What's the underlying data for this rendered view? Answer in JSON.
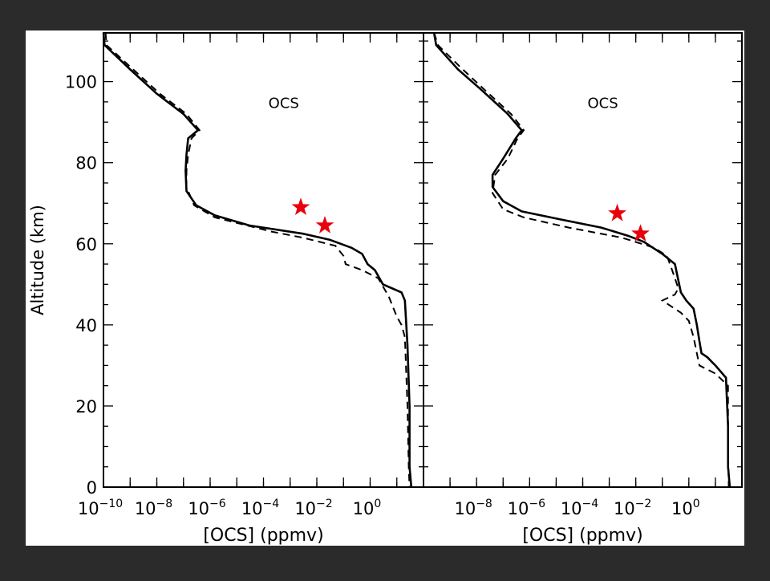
{
  "chart_data": [
    {
      "type": "line",
      "panel": "left",
      "annotation": "OCS",
      "ylabel": "Altitude    (km)",
      "xlabel": "[OCS]   (ppmv)",
      "xscale": "log",
      "xlim": [
        1e-10,
        100.0
      ],
      "ylim": [
        0,
        112
      ],
      "xticks": [
        {
          "value": 1e-10,
          "base": "10",
          "exp": "−10"
        },
        {
          "value": 1e-08,
          "base": "10",
          "exp": "−8"
        },
        {
          "value": 1e-06,
          "base": "10",
          "exp": "−6"
        },
        {
          "value": 0.0001,
          "base": "10",
          "exp": "−4"
        },
        {
          "value": 0.01,
          "base": "10",
          "exp": "−2"
        },
        {
          "value": 1,
          "base": "10",
          "exp": "0"
        }
      ],
      "yticks": [
        {
          "value": 0,
          "label": "0"
        },
        {
          "value": 20,
          "label": "20"
        },
        {
          "value": 40,
          "label": "40"
        },
        {
          "value": 60,
          "label": "60"
        },
        {
          "value": 80,
          "label": "80"
        },
        {
          "value": 100,
          "label": "100"
        }
      ],
      "series": [
        {
          "style": "solid",
          "points": [
            [
              1e-10,
              112
            ],
            [
              1.1e-10,
              109
            ],
            [
              1e-09,
              103
            ],
            [
              1e-08,
              97
            ],
            [
              1e-07,
              92
            ],
            [
              3.5e-07,
              88
            ],
            [
              1.5e-07,
              86
            ],
            [
              1.3e-07,
              82
            ],
            [
              1.2e-07,
              78
            ],
            [
              1.3e-07,
              73
            ],
            [
              3e-07,
              69.5
            ],
            [
              1.5e-06,
              67
            ],
            [
              3e-05,
              64.5
            ],
            [
              0.003,
              62.5
            ],
            [
              0.03,
              61
            ],
            [
              0.2,
              59
            ],
            [
              0.5,
              57.5
            ],
            [
              0.8,
              55
            ],
            [
              1.5,
              53.5
            ],
            [
              3,
              50
            ],
            [
              15,
              48
            ],
            [
              20,
              46
            ],
            [
              25,
              35
            ],
            [
              30,
              20
            ],
            [
              30,
              5
            ],
            [
              35,
              0
            ]
          ]
        },
        {
          "style": "dashed",
          "points": [
            [
              1.2e-10,
              112
            ],
            [
              1.3e-10,
              109
            ],
            [
              1.3e-09,
              103
            ],
            [
              1.3e-08,
              97
            ],
            [
              1.3e-07,
              92
            ],
            [
              4e-07,
              88
            ],
            [
              2e-07,
              86
            ],
            [
              1.5e-07,
              82
            ],
            [
              1.3e-07,
              78
            ],
            [
              1.3e-07,
              74
            ],
            [
              2.5e-07,
              69.5
            ],
            [
              1.5e-06,
              66.5
            ],
            [
              0.0002,
              63
            ],
            [
              0.003,
              61.5
            ],
            [
              0.05,
              59.5
            ],
            [
              0.1,
              57
            ],
            [
              0.12,
              55
            ],
            [
              0.5,
              53.5
            ],
            [
              2,
              51.5
            ],
            [
              5,
              47
            ],
            [
              10,
              42
            ],
            [
              15,
              40
            ],
            [
              20,
              37
            ],
            [
              25,
              20
            ],
            [
              28,
              5
            ],
            [
              30,
              0
            ]
          ]
        }
      ],
      "markers": [
        {
          "shape": "star",
          "color": "#e8000b",
          "x": 0.0025,
          "y": 69
        },
        {
          "shape": "star",
          "color": "#e8000b",
          "x": 0.02,
          "y": 64.5
        }
      ]
    },
    {
      "type": "line",
      "panel": "right",
      "annotation": "OCS",
      "xlabel": "[OCS]   (ppmv)",
      "xscale": "log",
      "xlim": [
        1e-10,
        100.0
      ],
      "ylim": [
        0,
        112
      ],
      "xticks": [
        {
          "value": 1e-08,
          "base": "10",
          "exp": "−8"
        },
        {
          "value": 1e-06,
          "base": "10",
          "exp": "−6"
        },
        {
          "value": 0.0001,
          "base": "10",
          "exp": "−4"
        },
        {
          "value": 0.01,
          "base": "10",
          "exp": "−2"
        },
        {
          "value": 1,
          "base": "10",
          "exp": "0"
        }
      ],
      "series": [
        {
          "style": "solid",
          "points": [
            [
              2.5e-10,
              112
            ],
            [
              3e-10,
              109
            ],
            [
              2e-09,
              103
            ],
            [
              1.5e-08,
              98
            ],
            [
              1.5e-07,
              92
            ],
            [
              5e-07,
              88
            ],
            [
              3e-07,
              86
            ],
            [
              1e-07,
              81
            ],
            [
              4e-08,
              77
            ],
            [
              4e-08,
              74
            ],
            [
              1e-07,
              70.5
            ],
            [
              5e-07,
              68
            ],
            [
              1.5e-05,
              66
            ],
            [
              0.0005,
              64
            ],
            [
              0.005,
              62
            ],
            [
              0.02,
              60.5
            ],
            [
              0.1,
              57.5
            ],
            [
              0.3,
              55
            ],
            [
              0.4,
              51
            ],
            [
              0.5,
              48
            ],
            [
              0.8,
              46
            ],
            [
              1.5,
              44
            ],
            [
              2,
              40
            ],
            [
              2.5,
              36
            ],
            [
              3,
              33
            ],
            [
              5,
              32
            ],
            [
              10,
              30
            ],
            [
              25,
              27
            ],
            [
              30,
              15
            ],
            [
              30,
              5
            ],
            [
              35,
              0
            ]
          ]
        },
        {
          "style": "dashed",
          "points": [
            [
              2.5e-10,
              112
            ],
            [
              3.5e-10,
              109
            ],
            [
              3e-09,
              103
            ],
            [
              2e-08,
              98
            ],
            [
              2e-07,
              92
            ],
            [
              6e-07,
              88
            ],
            [
              3.5e-07,
              86
            ],
            [
              1.5e-07,
              81
            ],
            [
              5e-08,
              77
            ],
            [
              4e-08,
              72.5
            ],
            [
              1e-07,
              68.5
            ],
            [
              6e-07,
              66.5
            ],
            [
              3e-05,
              64
            ],
            [
              0.003,
              61.5
            ],
            [
              0.05,
              59
            ],
            [
              0.15,
              57
            ],
            [
              0.25,
              53
            ],
            [
              0.4,
              49
            ],
            [
              0.3,
              47.5
            ],
            [
              0.1,
              46
            ],
            [
              0.5,
              43
            ],
            [
              1,
              41
            ],
            [
              1.5,
              37
            ],
            [
              2,
              33
            ],
            [
              2.5,
              30
            ],
            [
              10,
              28
            ],
            [
              30,
              25
            ],
            [
              30,
              10
            ],
            [
              32,
              0
            ]
          ]
        }
      ],
      "markers": [
        {
          "shape": "star",
          "color": "#e8000b",
          "x": 0.002,
          "y": 67.5
        },
        {
          "shape": "star",
          "color": "#e8000b",
          "x": 0.015,
          "y": 62.5
        }
      ]
    }
  ]
}
